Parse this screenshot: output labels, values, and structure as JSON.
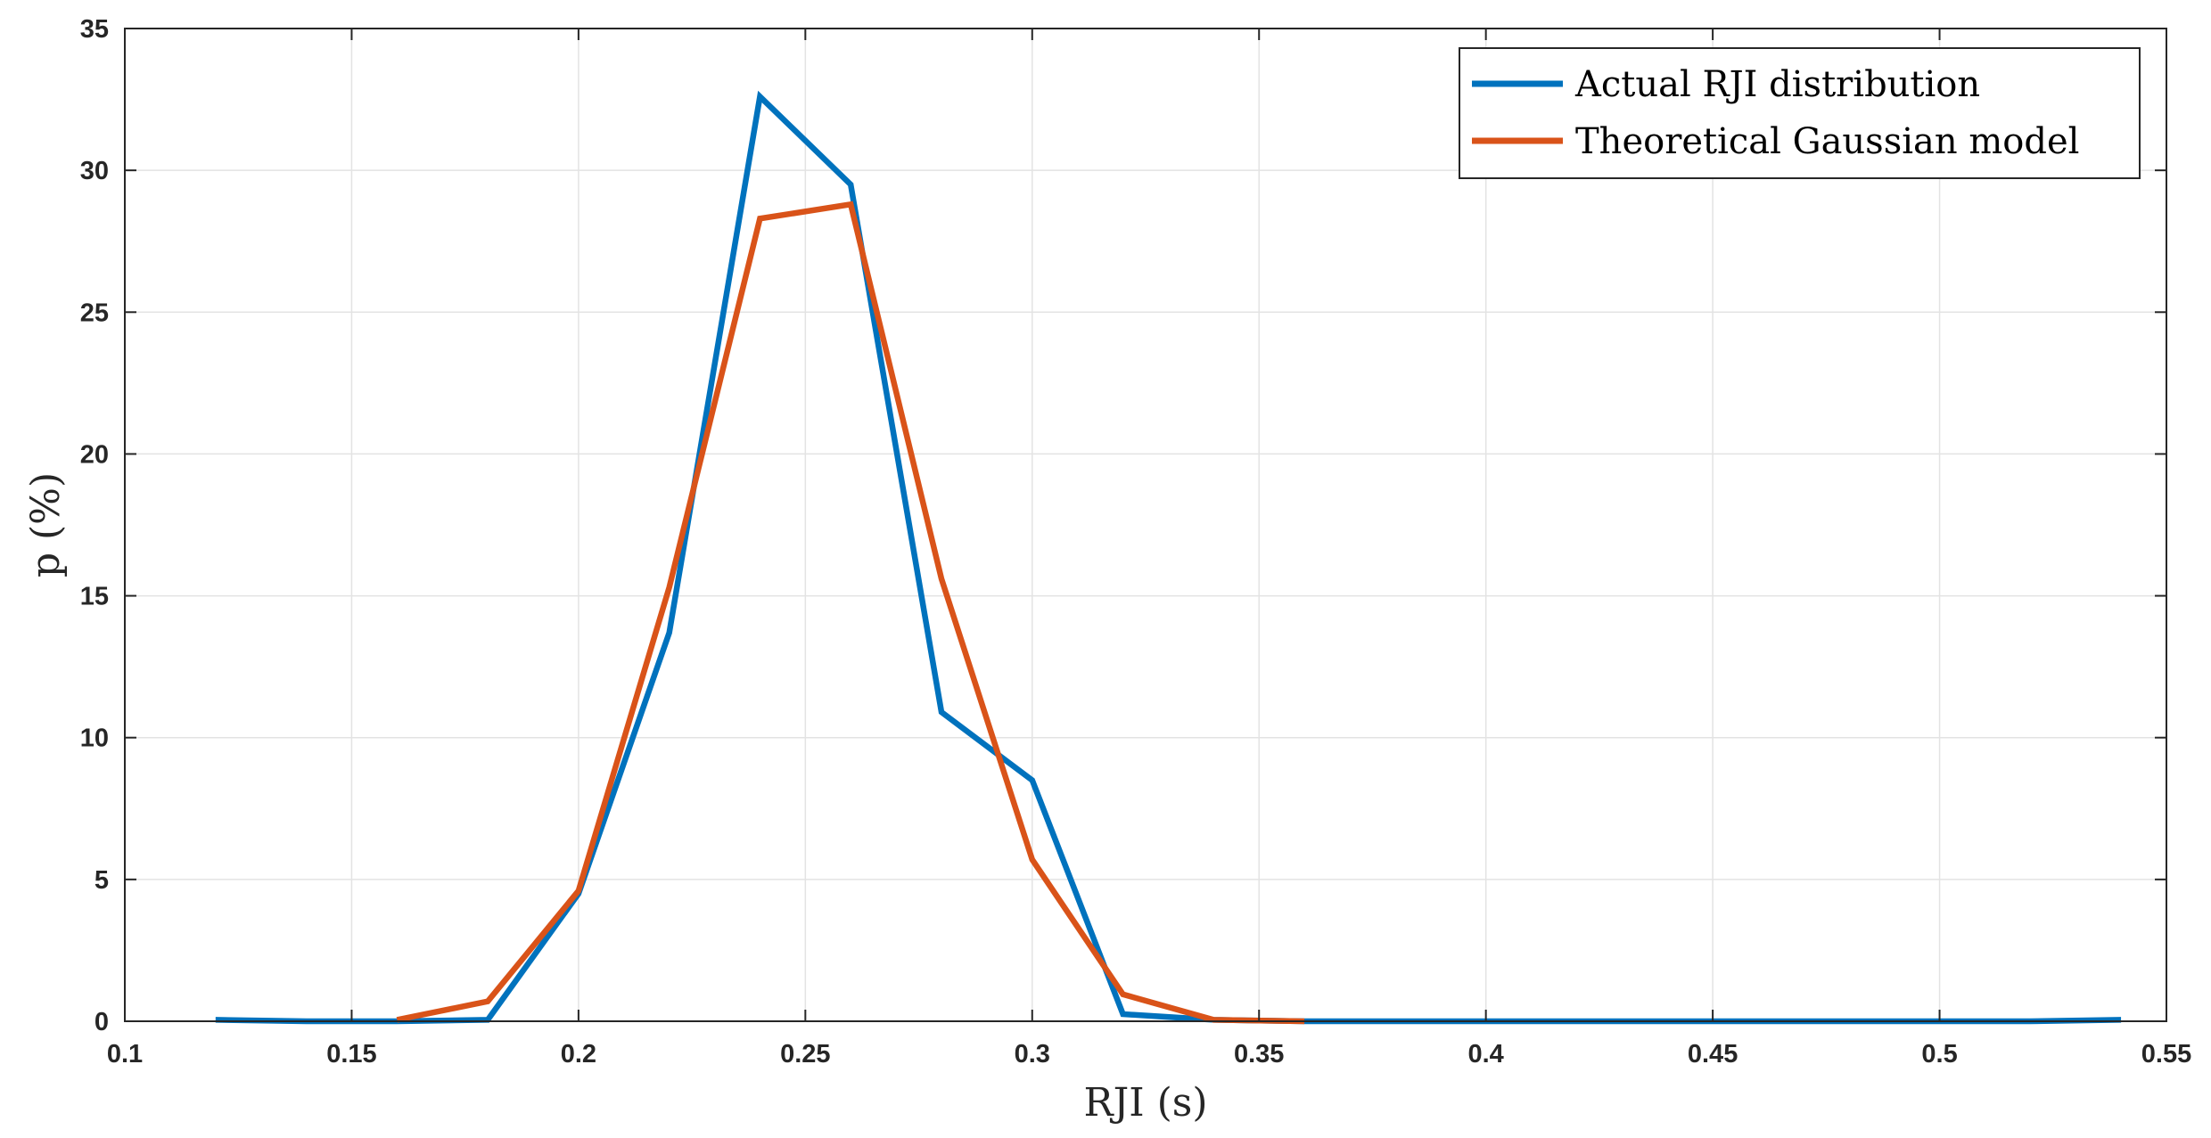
{
  "chart_data": {
    "type": "line",
    "xlabel": "RJI (s)",
    "ylabel": "p (%)",
    "xlim": [
      0.1,
      0.55
    ],
    "ylim": [
      0,
      35
    ],
    "xticks": [
      0.1,
      0.15,
      0.2,
      0.25,
      0.3,
      0.35,
      0.4,
      0.45,
      0.5,
      0.55
    ],
    "xtick_labels": [
      "0.1",
      "0.15",
      "0.2",
      "0.25",
      "0.3",
      "0.35",
      "0.4",
      "0.45",
      "0.5",
      "0.55"
    ],
    "yticks": [
      0,
      5,
      10,
      15,
      20,
      25,
      30,
      35
    ],
    "ytick_labels": [
      "0",
      "5",
      "10",
      "15",
      "20",
      "25",
      "30",
      "35"
    ],
    "grid": true,
    "legend_position": "top-right",
    "series": [
      {
        "name": "Actual RJI distribution",
        "color": "#0072BD",
        "x": [
          0.12,
          0.14,
          0.16,
          0.18,
          0.2,
          0.22,
          0.24,
          0.26,
          0.28,
          0.3,
          0.32,
          0.34,
          0.36,
          0.38,
          0.4,
          0.42,
          0.44,
          0.46,
          0.48,
          0.5,
          0.52,
          0.54
        ],
        "y": [
          0.05,
          0,
          0,
          0.05,
          4.5,
          13.7,
          32.6,
          29.5,
          10.9,
          8.5,
          0.25,
          0.05,
          0,
          0,
          0,
          0,
          0,
          0,
          0,
          0,
          0,
          0.05
        ]
      },
      {
        "name": "Theoretical Gaussian model",
        "color": "#D95319",
        "x": [
          0.16,
          0.18,
          0.2,
          0.22,
          0.24,
          0.26,
          0.28,
          0.3,
          0.32,
          0.34,
          0.36
        ],
        "y": [
          0.05,
          0.7,
          4.6,
          15.3,
          28.3,
          28.8,
          15.6,
          5.7,
          0.95,
          0.05,
          0
        ]
      }
    ]
  }
}
